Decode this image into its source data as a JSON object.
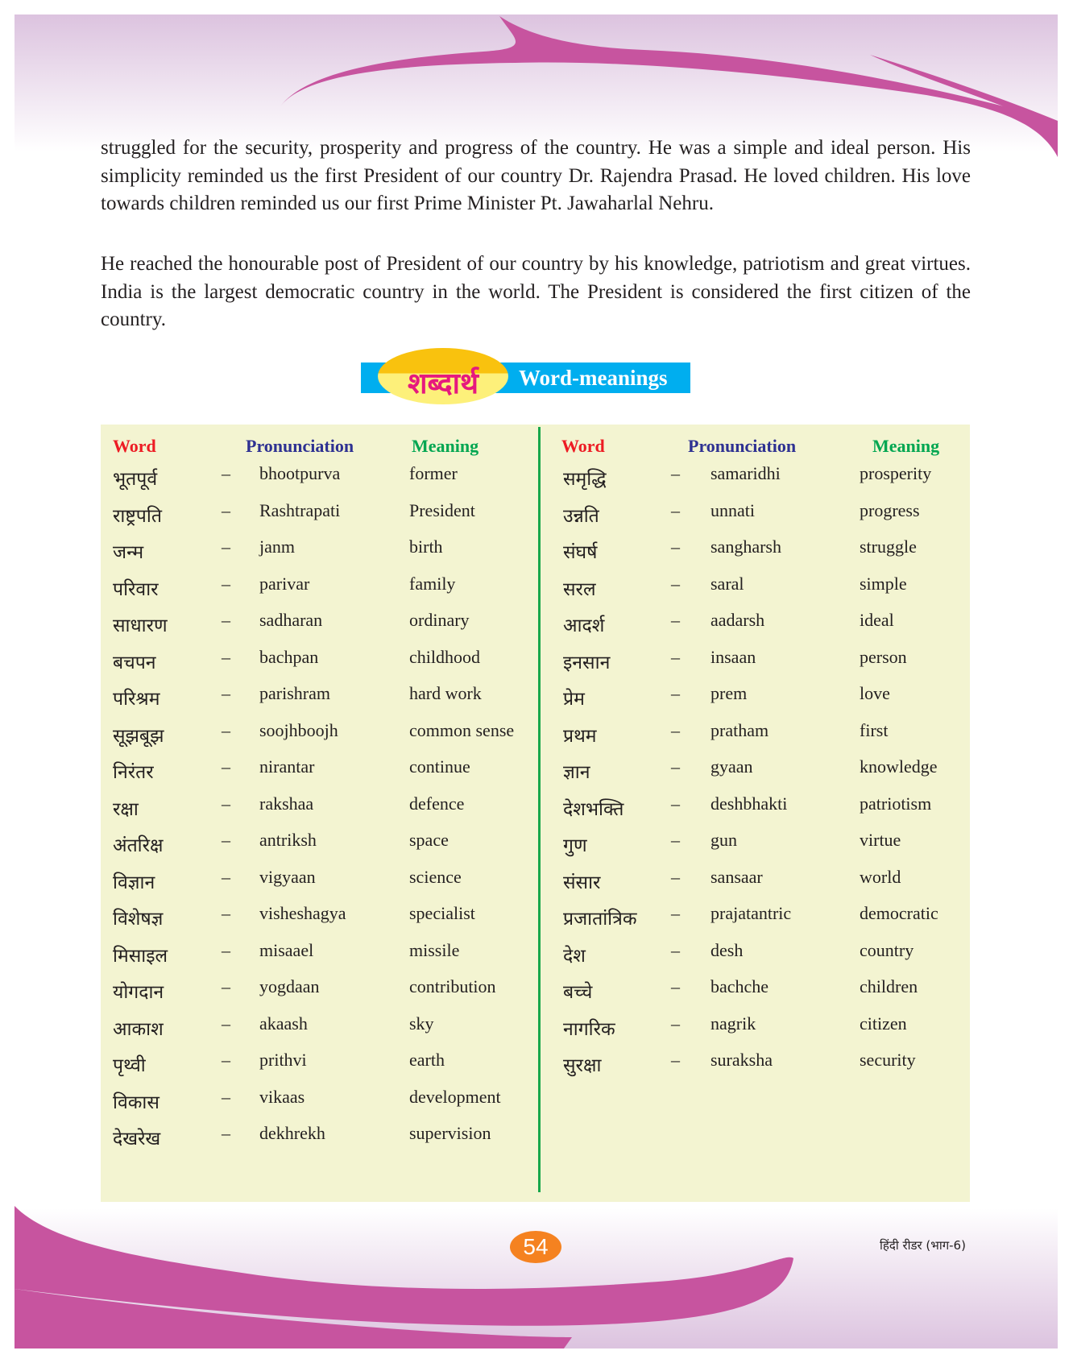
{
  "paragraphs": [
    "struggled for the security, prosperity and progress of the country. He was a simple and ideal person. His simplicity reminded us the first President of our country Dr. Rajendra Prasad. He loved children. His love towards children reminded us our first Prime Minister Pt. Jawaharlal Nehru.",
    "He reached the honourable post of President of our country by his knowledge, patriotism and great virtues. India is the largest democratic country in the world. The President is considered the first citizen of the country."
  ],
  "banner": {
    "hindi": "शब्दार्थ",
    "english": "Word-meanings"
  },
  "headers": {
    "word": "Word",
    "pronunciation": "Pronunciation",
    "meaning": "Meaning"
  },
  "colors": {
    "word": "#ed1c24",
    "pronunciation": "#2e3192",
    "meaning": "#00a651"
  },
  "dash": "–",
  "left": [
    [
      "भूतपूर्व",
      "bhootpurva",
      "former"
    ],
    [
      "राष्ट्रपति",
      "Rashtrapati",
      "President"
    ],
    [
      "जन्म",
      "janm",
      "birth"
    ],
    [
      "परिवार",
      "parivar",
      "family"
    ],
    [
      "साधारण",
      "sadharan",
      "ordinary"
    ],
    [
      "बचपन",
      "bachpan",
      "childhood"
    ],
    [
      "परिश्रम",
      "parishram",
      "hard work"
    ],
    [
      "सूझबूझ",
      "soojhboojh",
      "common sense"
    ],
    [
      "निरंतर",
      "nirantar",
      "continue"
    ],
    [
      "रक्षा",
      "rakshaa",
      "defence"
    ],
    [
      "अंतरिक्ष",
      "antriksh",
      "space"
    ],
    [
      "विज्ञान",
      "vigyaan",
      "science"
    ],
    [
      "विशेषज्ञ",
      "visheshagya",
      "specialist"
    ],
    [
      "मिसाइल",
      "misaael",
      "missile"
    ],
    [
      "योगदान",
      "yogdaan",
      "contribution"
    ],
    [
      "आकाश",
      "akaash",
      "sky"
    ],
    [
      "पृथ्वी",
      "prithvi",
      "earth"
    ],
    [
      "विकास",
      "vikaas",
      "development"
    ],
    [
      "देखरेख",
      "dekhrekh",
      "supervision"
    ]
  ],
  "right": [
    [
      "समृद्धि",
      "samaridhi",
      "prosperity"
    ],
    [
      "उन्नति",
      "unnati",
      "progress"
    ],
    [
      "संघर्ष",
      "sangharsh",
      "struggle"
    ],
    [
      "सरल",
      "saral",
      "simple"
    ],
    [
      "आदर्श",
      "aadarsh",
      "ideal"
    ],
    [
      "इनसान",
      "insaan",
      "person"
    ],
    [
      "प्रेम",
      "prem",
      "love"
    ],
    [
      "प्रथम",
      "pratham",
      "first"
    ],
    [
      "ज्ञान",
      "gyaan",
      "knowledge"
    ],
    [
      "देशभक्ति",
      "deshbhakti",
      "patriotism"
    ],
    [
      "गुण",
      "gun",
      "virtue"
    ],
    [
      "संसार",
      "sansaar",
      "world"
    ],
    [
      "प्रजातांत्रिक",
      "prajatantric",
      "democratic"
    ],
    [
      "देश",
      "desh",
      "country"
    ],
    [
      "बच्चे",
      "bachche",
      "children"
    ],
    [
      "नागरिक",
      "nagrik",
      "citizen"
    ],
    [
      "सुरक्षा",
      "suraksha",
      "security"
    ]
  ],
  "footer": {
    "page_number": "54",
    "book": "हिंदी रीडर (भाग-6)"
  }
}
